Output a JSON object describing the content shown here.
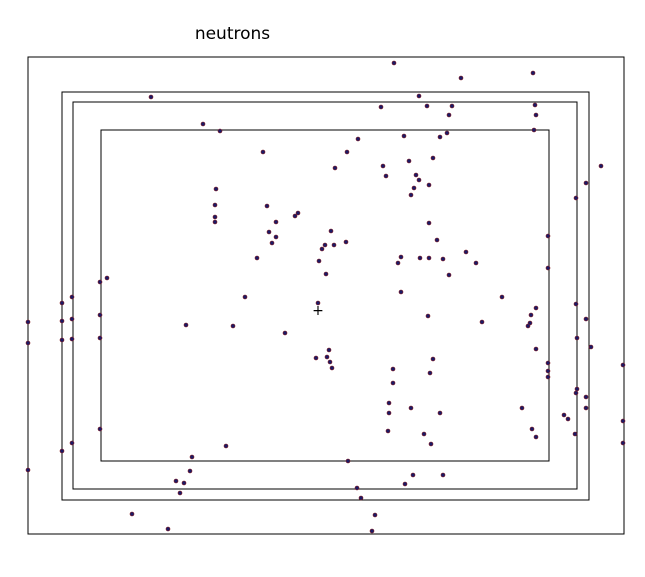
{
  "diagram": {
    "title": "neutrons",
    "boundary_count": 4,
    "marker_symbol": "+",
    "colors": {
      "line": "#000000",
      "dot_fill": "#1a1a66",
      "dot_edge": "#8b1a1a",
      "background": "#ffffff"
    }
  }
}
